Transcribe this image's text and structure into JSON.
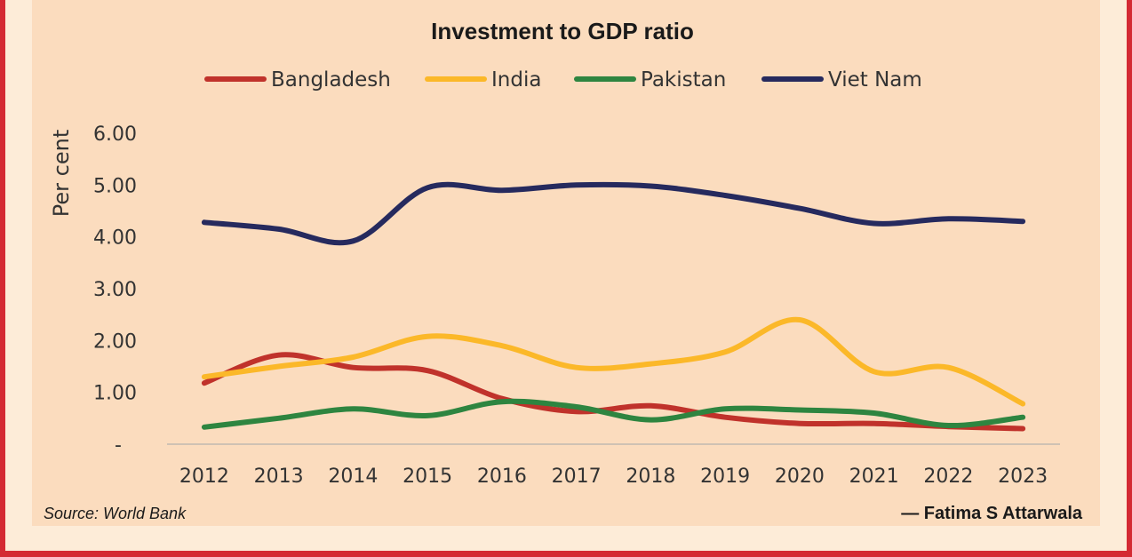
{
  "chart_data": {
    "type": "line",
    "title": "Investment to GDP ratio",
    "ylabel": "Per cent",
    "xlabel": "",
    "x": [
      "2012",
      "2013",
      "2014",
      "2015",
      "2016",
      "2017",
      "2018",
      "2019",
      "2020",
      "2021",
      "2022",
      "2023"
    ],
    "y_ticks": [
      "-",
      "1.00",
      "2.00",
      "3.00",
      "4.00",
      "5.00",
      "6.00"
    ],
    "ylim": [
      0,
      6
    ],
    "grid": false,
    "legend_position": "top",
    "series": [
      {
        "name": "Bangladesh",
        "color": "#c0322b",
        "values": [
          1.18,
          1.72,
          1.48,
          1.42,
          0.88,
          0.63,
          0.74,
          0.52,
          0.4,
          0.4,
          0.34,
          0.3
        ]
      },
      {
        "name": "India",
        "color": "#fbb829",
        "values": [
          1.3,
          1.5,
          1.68,
          2.08,
          1.9,
          1.48,
          1.55,
          1.78,
          2.4,
          1.4,
          1.48,
          0.78
        ]
      },
      {
        "name": "Pakistan",
        "color": "#2e8540",
        "values": [
          0.33,
          0.5,
          0.68,
          0.55,
          0.82,
          0.72,
          0.47,
          0.68,
          0.66,
          0.6,
          0.36,
          0.52
        ]
      },
      {
        "name": "Viet Nam",
        "color": "#262a5e",
        "values": [
          4.28,
          4.15,
          3.92,
          4.95,
          4.9,
          5.0,
          4.98,
          4.8,
          4.55,
          4.26,
          4.35,
          4.3
        ]
      }
    ]
  },
  "footer": {
    "source": "Source: World Bank",
    "credit": "— Fatima S Attarwala"
  }
}
